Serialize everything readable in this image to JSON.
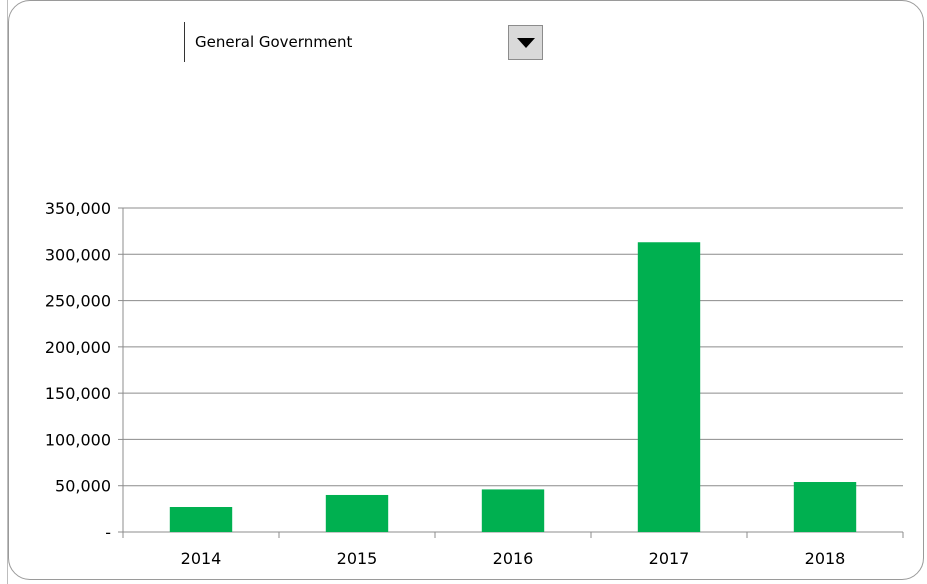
{
  "selector": {
    "selected_value": "General Government",
    "dropdown_icon": "triangle-down-icon"
  },
  "colors": {
    "bar": "#00b050",
    "grid": "#8c8c8c",
    "axis": "#8c8c8c"
  },
  "chart_data": {
    "type": "bar",
    "title": "",
    "xlabel": "",
    "ylabel": "",
    "categories": [
      "2014",
      "2015",
      "2016",
      "2017",
      "2018"
    ],
    "values": [
      27000,
      40000,
      46000,
      313000,
      54000
    ],
    "ylim": [
      0,
      350000
    ],
    "yticks": [
      0,
      50000,
      100000,
      150000,
      200000,
      250000,
      300000,
      350000
    ],
    "ytick_labels": [
      "-",
      "50,000",
      "100,000",
      "150,000",
      "200,000",
      "250,000",
      "300,000",
      "350,000"
    ],
    "grid": true,
    "legend": "none"
  }
}
